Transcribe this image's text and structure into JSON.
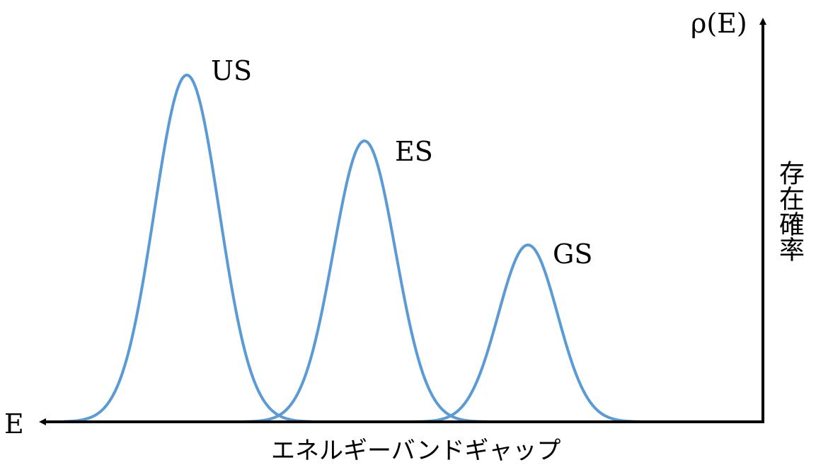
{
  "diagram": {
    "axes": {
      "x_end_label": "E",
      "y_top_label": "ρ(E)",
      "x_caption": "エネルギーバンドギャップ",
      "y_caption": "存在確率",
      "axis_color": "#000000"
    },
    "curve_color": "#5b9bd5",
    "peaks": [
      {
        "label": "US",
        "relative_height": 1.0
      },
      {
        "label": "ES",
        "relative_height": 0.81
      },
      {
        "label": "GS",
        "relative_height": 0.51
      }
    ]
  }
}
